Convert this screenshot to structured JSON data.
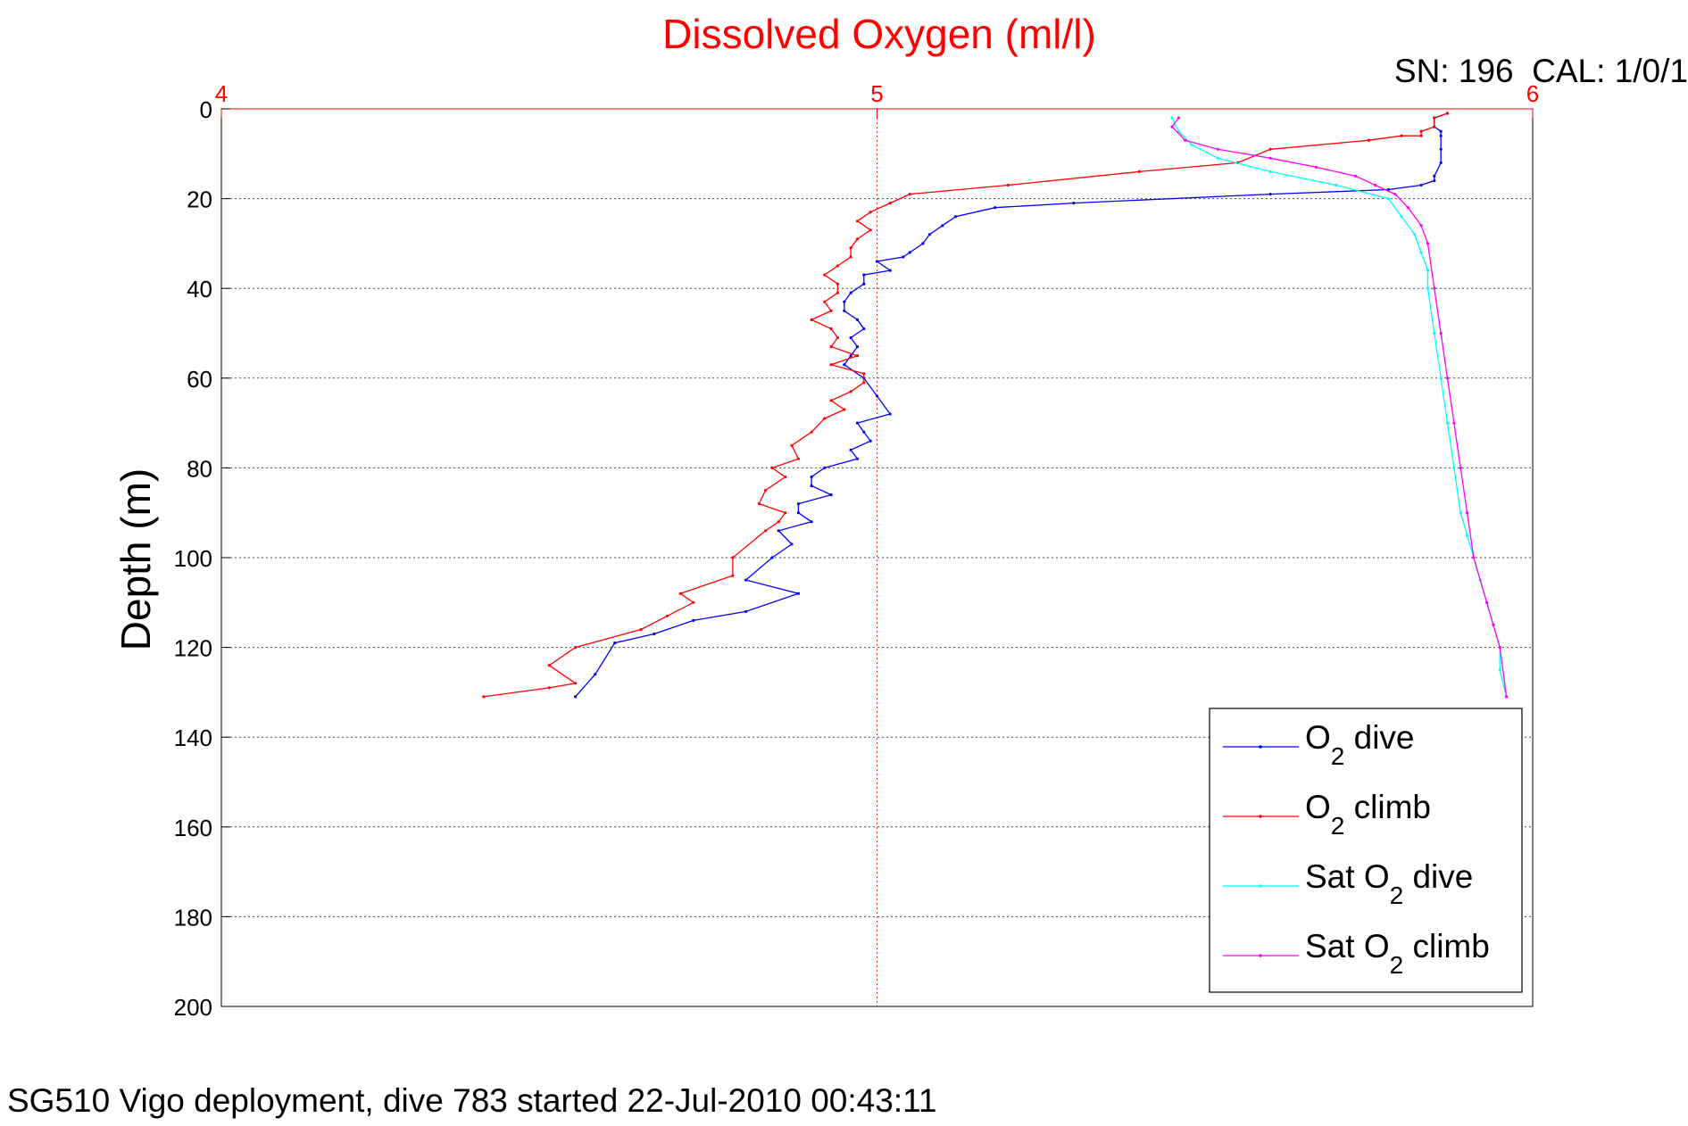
{
  "chart_data": {
    "type": "line",
    "title": "Dissolved Oxygen (ml/l)",
    "top_right_label": "SN: 196  CAL: 1/0/1",
    "footer": "SG510 Vigo deployment, dive 783 started 22-Jul-2010 00:43:11",
    "ylabel": "Depth (m)",
    "xlim": [
      4,
      6
    ],
    "ylim": [
      0,
      200
    ],
    "y_reversed": true,
    "x_axis_position": "top",
    "x_ticks": [
      "4",
      "5",
      "6"
    ],
    "y_ticks": [
      "0",
      "20",
      "40",
      "60",
      "80",
      "100",
      "120",
      "140",
      "160",
      "180",
      "200"
    ],
    "grid": true,
    "legend_position": "bottom-right",
    "colors": {
      "title": "#ff0000",
      "x_axis": "#ff0000",
      "text": "#000000"
    },
    "series": [
      {
        "name": "O2 dive",
        "legend_main": "O",
        "legend_sub": "2",
        "legend_rest": " dive",
        "color": "#0000ff",
        "x": [
          5.87,
          5.85,
          5.85,
          5.86,
          5.86,
          5.86,
          5.86,
          5.85,
          5.85,
          5.83,
          5.78,
          5.6,
          5.3,
          5.18,
          5.12,
          5.1,
          5.08,
          5.07,
          5.05,
          5.04,
          5.0,
          5.02,
          4.98,
          4.98,
          4.96,
          4.95,
          4.95,
          4.97,
          4.98,
          4.96,
          4.97,
          4.96,
          4.95,
          4.98,
          5.0,
          5.02,
          4.97,
          4.98,
          4.99,
          4.96,
          4.97,
          4.92,
          4.9,
          4.9,
          4.93,
          4.88,
          4.88,
          4.9,
          4.85,
          4.87,
          4.84,
          4.8,
          4.88,
          4.8,
          4.72,
          4.66,
          4.6,
          4.57,
          4.54
        ],
        "y": [
          1,
          2,
          4,
          5,
          6,
          9,
          12,
          15,
          16,
          17,
          18,
          19,
          21,
          22,
          24,
          26,
          28,
          30,
          32,
          33,
          34,
          36,
          37,
          39,
          41,
          43,
          45,
          47,
          49,
          51,
          53,
          55,
          57,
          60,
          64,
          68,
          70,
          72,
          74,
          76,
          78,
          80,
          82,
          84,
          86,
          88,
          90,
          92,
          94,
          97,
          100,
          105,
          108,
          112,
          114,
          117,
          119,
          126,
          131
        ]
      },
      {
        "name": "O2 climb",
        "legend_main": "O",
        "legend_sub": "2",
        "legend_rest": " climb",
        "color": "#ff0000",
        "x": [
          5.87,
          5.85,
          5.85,
          5.83,
          5.83,
          5.8,
          5.75,
          5.6,
          5.55,
          5.4,
          5.2,
          5.05,
          5.02,
          4.99,
          4.97,
          4.99,
          4.97,
          4.96,
          4.96,
          4.94,
          4.92,
          4.94,
          4.94,
          4.92,
          4.93,
          4.9,
          4.93,
          4.94,
          4.93,
          4.97,
          4.93,
          4.98,
          4.98,
          4.96,
          4.93,
          4.95,
          4.92,
          4.9,
          4.87,
          4.88,
          4.84,
          4.86,
          4.83,
          4.82,
          4.86,
          4.85,
          4.83,
          4.78,
          4.78,
          4.7,
          4.72,
          4.68,
          4.64,
          4.54,
          4.5,
          4.54,
          4.5,
          4.4
        ],
        "y": [
          1,
          2,
          4,
          5,
          6,
          6,
          7,
          9,
          12,
          14,
          17,
          19,
          21,
          23,
          25,
          27,
          29,
          31,
          33,
          35,
          37,
          39,
          41,
          43,
          45,
          47,
          49,
          51,
          53,
          55,
          57,
          59,
          61,
          63,
          65,
          67,
          69,
          72,
          75,
          78,
          80,
          82,
          85,
          88,
          90,
          92,
          94,
          100,
          104,
          108,
          110,
          113,
          116,
          120,
          124,
          128,
          129,
          131
        ]
      },
      {
        "name": "Sat O2 dive",
        "legend_main": "Sat O",
        "legend_sub": "2",
        "legend_rest": " dive",
        "color": "#00ffff",
        "x": [
          5.45,
          5.46,
          5.48,
          5.52,
          5.6,
          5.7,
          5.78,
          5.8,
          5.82,
          5.83,
          5.84,
          5.84,
          5.85,
          5.86,
          5.87,
          5.88,
          5.89,
          5.9,
          5.91,
          5.92,
          5.93,
          5.94,
          5.95,
          5.95,
          5.96
        ],
        "y": [
          2,
          5,
          8,
          11,
          14,
          17,
          20,
          24,
          28,
          32,
          36,
          40,
          50,
          60,
          70,
          80,
          90,
          95,
          100,
          105,
          110,
          115,
          120,
          125,
          131
        ]
      },
      {
        "name": "Sat O2 climb",
        "legend_main": "Sat O",
        "legend_sub": "2",
        "legend_rest": " climb",
        "color": "#ff00ff",
        "x": [
          5.46,
          5.45,
          5.47,
          5.52,
          5.6,
          5.67,
          5.73,
          5.76,
          5.79,
          5.81,
          5.83,
          5.84,
          5.85,
          5.86,
          5.87,
          5.88,
          5.89,
          5.9,
          5.91,
          5.93,
          5.94,
          5.95,
          5.96
        ],
        "y": [
          2,
          4,
          7,
          9,
          11,
          13,
          15,
          17,
          19,
          22,
          26,
          30,
          40,
          50,
          60,
          70,
          80,
          90,
          100,
          110,
          115,
          120,
          131
        ]
      }
    ]
  }
}
